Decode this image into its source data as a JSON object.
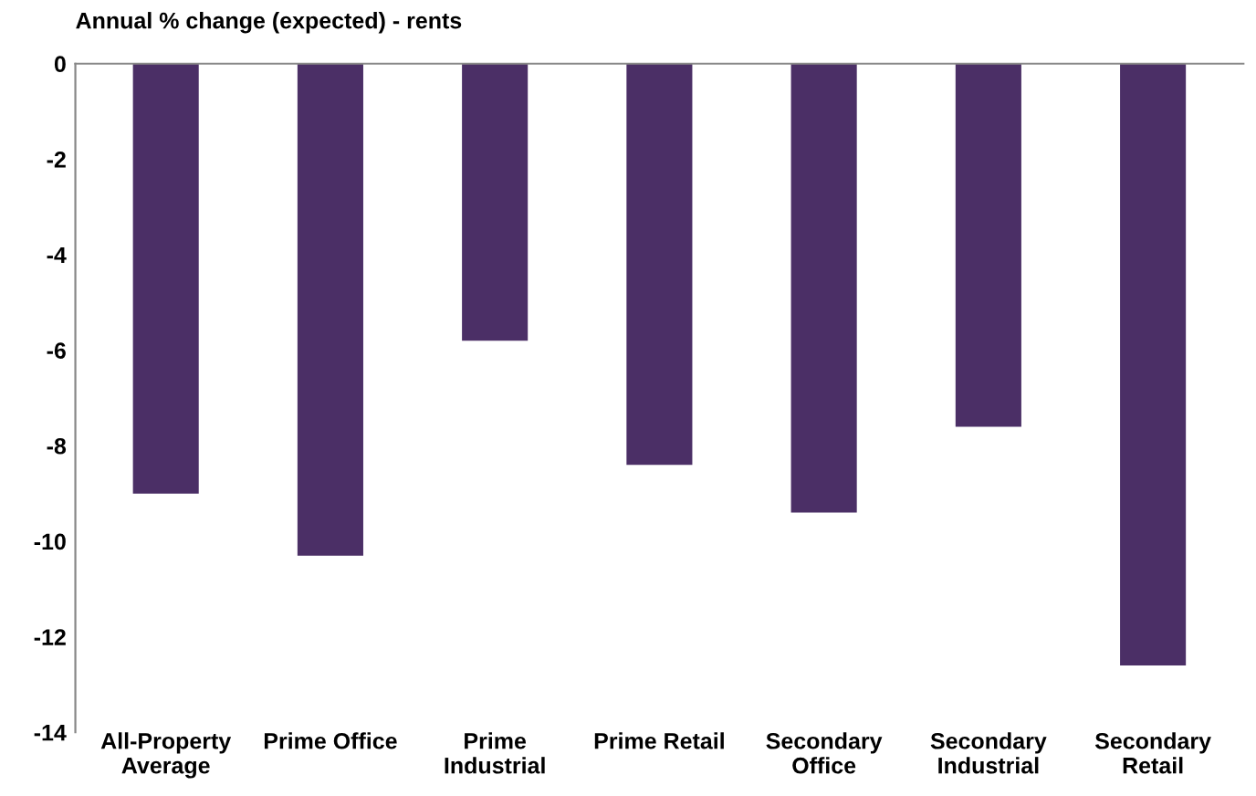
{
  "chart_data": {
    "type": "bar",
    "title": "Annual % change (expected) - rents",
    "categories": [
      "All-Property\nAverage",
      "Prime Office",
      "Prime\nIndustrial",
      "Prime Retail",
      "Secondary\nOffice",
      "Secondary\nIndustrial",
      "Secondary\nRetail"
    ],
    "values": [
      -9.0,
      -10.3,
      -5.8,
      -8.4,
      -9.4,
      -7.6,
      -12.6
    ],
    "color": "#4b2f66",
    "ylim": [
      -14,
      0
    ],
    "yticks": [
      -14,
      -12,
      -10,
      -8,
      -6,
      -4,
      -2,
      0
    ],
    "grid": false,
    "legend": false
  }
}
